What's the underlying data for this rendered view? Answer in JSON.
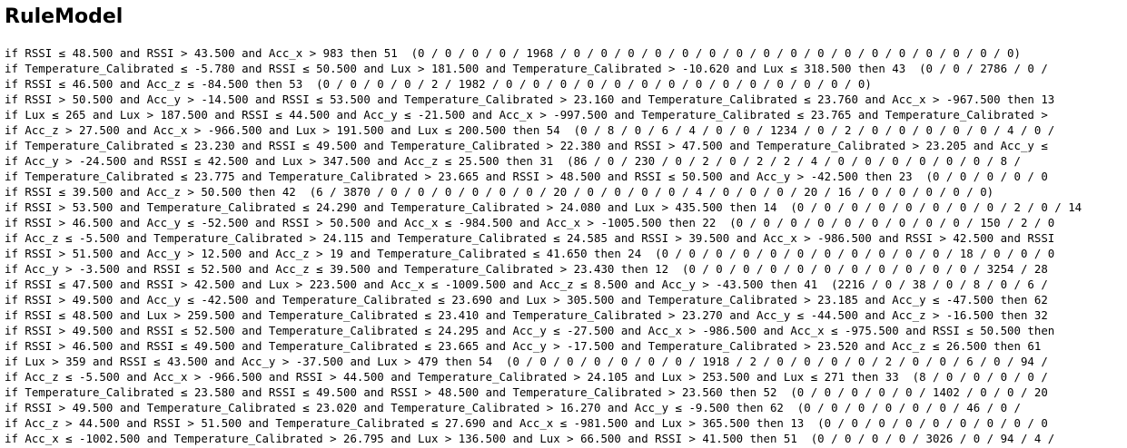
{
  "title": "RuleModel",
  "rules": [
    "if RSSI ≤ 48.500 and RSSI > 43.500 and Acc_x > 983 then 51  (0 / 0 / 0 / 0 / 1968 / 0 / 0 / 0 / 0 / 0 / 0 / 0 / 0 / 0 / 0 / 0 / 0 / 0 / 0 / 0 / 0 / 0)",
    "if Temperature_Calibrated ≤ -5.780 and RSSI ≤ 50.500 and Lux > 181.500 and Temperature_Calibrated > -10.620 and Lux ≤ 318.500 then 43  (0 / 0 / 2786 / 0 /",
    "if RSSI ≤ 46.500 and Acc_z ≤ -84.500 then 53  (0 / 0 / 0 / 0 / 2 / 1982 / 0 / 0 / 0 / 0 / 0 / 0 / 0 / 0 / 0 / 0 / 0 / 0 / 0 / 0)",
    "if RSSI > 50.500 and Acc_y > -14.500 and RSSI ≤ 53.500 and Temperature_Calibrated > 23.160 and Temperature_Calibrated ≤ 23.760 and Acc_x > -967.500 then 13",
    "if Lux ≤ 265 and Lux > 187.500 and RSSI ≤ 44.500 and Acc_y ≤ -21.500 and Acc_x > -997.500 and Temperature_Calibrated ≤ 23.765 and Temperature_Calibrated >",
    "if Acc_z > 27.500 and Acc_x > -966.500 and Lux > 191.500 and Lux ≤ 200.500 then 54  (0 / 8 / 0 / 6 / 4 / 0 / 0 / 1234 / 0 / 2 / 0 / 0 / 0 / 0 / 0 / 4 / 0 /",
    "if Temperature_Calibrated ≤ 23.230 and RSSI ≤ 49.500 and Temperature_Calibrated > 22.380 and RSSI > 47.500 and Temperature_Calibrated > 23.205 and Acc_y ≤",
    "if Acc_y > -24.500 and RSSI ≤ 42.500 and Lux > 347.500 and Acc_z ≤ 25.500 then 31  (86 / 0 / 230 / 0 / 2 / 0 / 2 / 2 / 4 / 0 / 0 / 0 / 0 / 0 / 0 / 8 /",
    "if Temperature_Calibrated ≤ 23.775 and Temperature_Calibrated > 23.665 and RSSI > 48.500 and RSSI ≤ 50.500 and Acc_y > -42.500 then 23  (0 / 0 / 0 / 0 / 0",
    "if RSSI ≤ 39.500 and Acc_z > 50.500 then 42  (6 / 3870 / 0 / 0 / 0 / 0 / 0 / 0 / 20 / 0 / 0 / 0 / 0 / 4 / 0 / 0 / 0 / 20 / 16 / 0 / 0 / 0 / 0 / 0)",
    "if RSSI > 53.500 and Temperature_Calibrated ≤ 24.290 and Temperature_Calibrated > 24.080 and Lux > 435.500 then 14  (0 / 0 / 0 / 0 / 0 / 0 / 0 / 0 / 2 / 0 / 14",
    "if RSSI > 46.500 and Acc_y ≤ -52.500 and RSSI > 50.500 and Acc_x ≤ -984.500 and Acc_x > -1005.500 then 22  (0 / 0 / 0 / 0 / 0 / 0 / 0 / 0 / 0 / 150 / 2 / 0",
    "if Acc_z ≤ -5.500 and Temperature_Calibrated > 24.115 and Temperature_Calibrated ≤ 24.585 and RSSI > 39.500 and Acc_x > -986.500 and RSSI > 42.500 and RSSI",
    "if RSSI > 51.500 and Acc_y > 12.500 and Acc_z > 19 and Temperature_Calibrated ≤ 41.650 then 24  (0 / 0 / 0 / 0 / 0 / 0 / 0 / 0 / 0 / 0 / 0 / 18 / 0 / 0 / 0",
    "if Acc_y > -3.500 and RSSI ≤ 52.500 and Acc_z ≤ 39.500 and Temperature_Calibrated > 23.430 then 12  (0 / 0 / 0 / 0 / 0 / 0 / 0 / 0 / 0 / 0 / 0 / 3254 / 28",
    "if RSSI ≤ 47.500 and RSSI > 42.500 and Lux > 223.500 and Acc_x ≤ -1009.500 and Acc_z ≤ 8.500 and Acc_y > -43.500 then 41  (2216 / 0 / 38 / 0 / 8 / 0 / 6 /",
    "if RSSI > 49.500 and Acc_y ≤ -42.500 and Temperature_Calibrated ≤ 23.690 and Lux > 305.500 and Temperature_Calibrated > 23.185 and Acc_y ≤ -47.500 then 62",
    "if RSSI ≤ 48.500 and Lux > 259.500 and Temperature_Calibrated ≤ 23.410 and Temperature_Calibrated > 23.270 and Acc_y ≤ -44.500 and Acc_z > -16.500 then 32",
    "if RSSI > 49.500 and RSSI ≤ 52.500 and Temperature_Calibrated ≤ 24.295 and Acc_y ≤ -27.500 and Acc_x > -986.500 and Acc_x ≤ -975.500 and RSSI ≤ 50.500 then",
    "if RSSI > 46.500 and RSSI ≤ 49.500 and Temperature_Calibrated ≤ 23.665 and Acc_y > -17.500 and Temperature_Calibrated > 23.520 and Acc_z ≤ 26.500 then 61",
    "if Lux > 359 and RSSI ≤ 43.500 and Acc_y > -37.500 and Lux > 479 then 54  (0 / 0 / 0 / 0 / 0 / 0 / 0 / 1918 / 2 / 0 / 0 / 0 / 0 / 2 / 0 / 0 / 6 / 0 / 94 /",
    "if Acc_z ≤ -5.500 and Acc_x > -966.500 and RSSI > 44.500 and Temperature_Calibrated > 24.105 and Lux > 253.500 and Lux ≤ 271 then 33  (8 / 0 / 0 / 0 / 0 /",
    "if Temperature_Calibrated ≤ 23.580 and RSSI ≤ 49.500 and RSSI > 48.500 and Temperature_Calibrated > 23.560 then 52  (0 / 0 / 0 / 0 / 0 / 1402 / 0 / 0 / 20",
    "if RSSI > 49.500 and Temperature_Calibrated ≤ 23.020 and Temperature_Calibrated > 16.270 and Acc_y ≤ -9.500 then 62  (0 / 0 / 0 / 0 / 0 / 0 / 46 / 0 /",
    "if Acc_z > 44.500 and RSSI > 51.500 and Temperature_Calibrated ≤ 27.690 and Acc_x ≤ -981.500 and Lux > 365.500 then 13  (0 / 0 / 0 / 0 / 0 / 0 / 0 / 0 / 0",
    "if Acc_x ≤ -1002.500 and Temperature_Calibrated > 26.795 and Lux > 136.500 and Lux > 66.500 and RSSI > 41.500 then 51  (0 / 0 / 0 / 0 / 3026 / 0 / 94 / 4 /"
  ]
}
